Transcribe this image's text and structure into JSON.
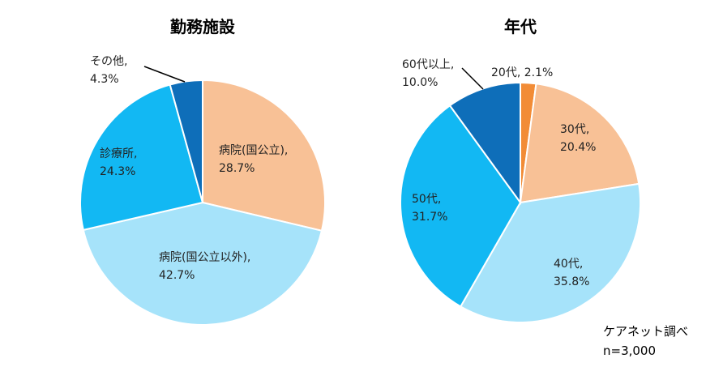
{
  "chart_data": [
    {
      "type": "pie",
      "title": "勤務施設",
      "slices": [
        {
          "label": "病院(国公立),",
          "value": 28.7,
          "value_label": "28.7%",
          "color": "#F8C196"
        },
        {
          "label": "病院(国公立以外),",
          "value": 42.7,
          "value_label": "42.7%",
          "color": "#A6E3FA"
        },
        {
          "label": "診療所,",
          "value": 24.3,
          "value_label": "24.3%",
          "color": "#12B8F3"
        },
        {
          "label": "その他,",
          "value": 4.3,
          "value_label": "4.3%",
          "color": "#0E6EB9"
        }
      ]
    },
    {
      "type": "pie",
      "title": "年代",
      "slices": [
        {
          "label": "20代,",
          "value": 2.1,
          "value_label": "2.1%",
          "color": "#F28C36"
        },
        {
          "label": "30代,",
          "value": 20.4,
          "value_label": "20.4%",
          "color": "#F8C196"
        },
        {
          "label": "40代,",
          "value": 35.8,
          "value_label": "35.8%",
          "color": "#A6E3FA"
        },
        {
          "label": "50代,",
          "value": 31.7,
          "value_label": "31.7%",
          "color": "#12B8F3"
        },
        {
          "label": "60代以上,",
          "value": 10.0,
          "value_label": "10.0%",
          "color": "#0E6EB9"
        }
      ]
    }
  ],
  "source_note": "ケアネット調べ",
  "sample_note": "n=3,000"
}
